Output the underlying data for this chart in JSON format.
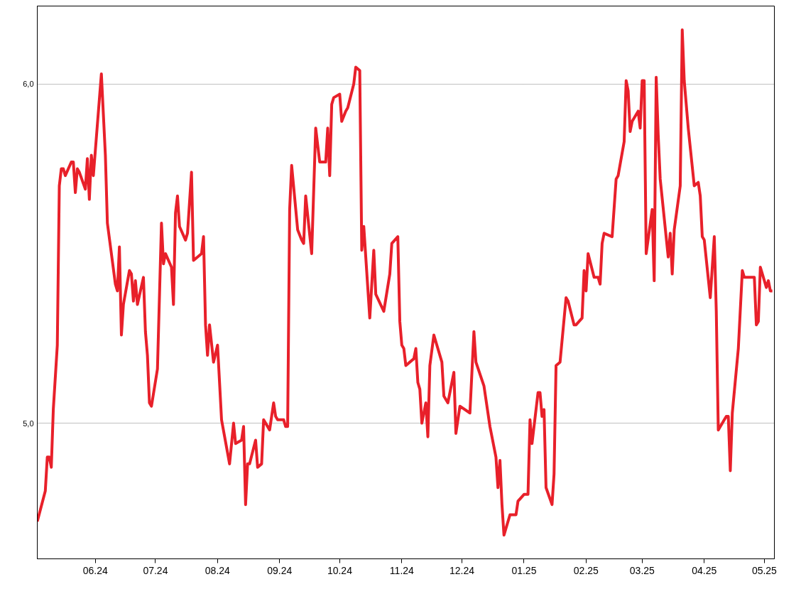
{
  "chart_data": {
    "type": "line",
    "x": [
      "2024-05-03",
      "2024-05-07",
      "2024-05-08",
      "2024-05-09",
      "2024-05-10",
      "2024-05-11",
      "2024-05-13",
      "2024-05-14",
      "2024-05-15",
      "2024-05-16",
      "2024-05-17",
      "2024-05-20",
      "2024-05-21",
      "2024-05-22",
      "2024-05-23",
      "2024-05-24",
      "2024-05-27",
      "2024-05-28",
      "2024-05-29",
      "2024-05-30",
      "2024-05-31",
      "2024-06-04",
      "2024-06-05",
      "2024-06-06",
      "2024-06-07",
      "2024-06-11",
      "2024-06-12",
      "2024-06-13",
      "2024-06-14",
      "2024-06-15",
      "2024-06-18",
      "2024-06-19",
      "2024-06-20",
      "2024-06-21",
      "2024-06-22",
      "2024-06-25",
      "2024-06-26",
      "2024-06-27",
      "2024-06-28",
      "2024-06-29",
      "2024-07-02",
      "2024-07-04",
      "2024-07-05",
      "2024-07-06",
      "2024-07-09",
      "2024-07-10",
      "2024-07-11",
      "2024-07-12",
      "2024-07-13",
      "2024-07-16",
      "2024-07-17",
      "2024-07-19",
      "2024-07-20",
      "2024-07-24",
      "2024-07-25",
      "2024-07-26",
      "2024-07-27",
      "2024-07-28",
      "2024-07-30",
      "2024-08-01",
      "2024-08-03",
      "2024-08-07",
      "2024-08-09",
      "2024-08-10",
      "2024-08-13",
      "2024-08-14",
      "2024-08-15",
      "2024-08-16",
      "2024-08-17",
      "2024-08-20",
      "2024-08-21",
      "2024-08-23",
      "2024-08-24",
      "2024-08-27",
      "2024-08-29",
      "2024-08-30",
      "2024-08-31",
      "2024-09-03",
      "2024-09-04",
      "2024-09-05",
      "2024-09-06",
      "2024-09-07",
      "2024-09-10",
      "2024-09-12",
      "2024-09-13",
      "2024-09-14",
      "2024-09-17",
      "2024-09-19",
      "2024-09-21",
      "2024-09-24",
      "2024-09-25",
      "2024-09-26",
      "2024-09-27",
      "2024-09-28",
      "2024-10-01",
      "2024-10-02",
      "2024-10-04",
      "2024-10-05",
      "2024-10-08",
      "2024-10-09",
      "2024-10-11",
      "2024-10-12",
      "2024-10-13",
      "2024-10-16",
      "2024-10-18",
      "2024-10-19",
      "2024-10-23",
      "2024-10-26",
      "2024-10-27",
      "2024-10-30",
      "2024-10-31",
      "2024-11-01",
      "2024-11-02",
      "2024-11-03",
      "2024-11-07",
      "2024-11-08",
      "2024-11-09",
      "2024-11-10",
      "2024-11-11",
      "2024-11-13",
      "2024-11-14",
      "2024-11-15",
      "2024-11-17",
      "2024-11-21",
      "2024-11-22",
      "2024-11-24",
      "2024-11-27",
      "2024-11-28",
      "2024-11-30",
      "2024-12-05",
      "2024-12-07",
      "2024-12-08",
      "2024-12-12",
      "2024-12-15",
      "2024-12-18",
      "2024-12-19",
      "2024-12-20",
      "2024-12-21",
      "2024-12-22",
      "2024-12-25",
      "2024-12-28",
      "2024-12-29",
      "2025-01-01",
      "2025-01-03",
      "2025-01-04",
      "2025-01-05",
      "2025-01-08",
      "2025-01-09",
      "2025-01-10",
      "2025-01-11",
      "2025-01-12",
      "2025-01-15",
      "2025-01-16",
      "2025-01-17",
      "2025-01-19",
      "2025-01-22",
      "2025-01-23",
      "2025-01-26",
      "2025-01-27",
      "2025-01-30",
      "2025-01-31",
      "2025-02-01",
      "2025-02-02",
      "2025-02-05",
      "2025-02-07",
      "2025-02-08",
      "2025-02-09",
      "2025-02-10",
      "2025-02-14",
      "2025-02-16",
      "2025-02-17",
      "2025-02-20",
      "2025-02-21",
      "2025-02-22",
      "2025-02-23",
      "2025-02-24",
      "2025-02-27",
      "2025-02-28",
      "2025-03-01",
      "2025-03-02",
      "2025-03-03",
      "2025-03-06",
      "2025-03-07",
      "2025-03-08",
      "2025-03-09",
      "2025-03-10",
      "2025-03-14",
      "2025-03-15",
      "2025-03-16",
      "2025-03-17",
      "2025-03-20",
      "2025-03-21",
      "2025-03-22",
      "2025-03-24",
      "2025-03-27",
      "2025-03-29",
      "2025-03-30",
      "2025-03-31",
      "2025-04-01",
      "2025-04-04",
      "2025-04-06",
      "2025-04-07",
      "2025-04-08",
      "2025-04-12",
      "2025-04-13",
      "2025-04-14",
      "2025-04-15",
      "2025-04-18",
      "2025-04-20",
      "2025-04-21",
      "2025-04-26",
      "2025-04-27",
      "2025-04-28",
      "2025-04-29",
      "2025-05-02",
      "2025-05-03",
      "2025-05-04",
      "2025-05-05"
    ],
    "series": [
      {
        "color": "#e8202a",
        "values": [
          4.71,
          4.8,
          4.9,
          4.9,
          4.87,
          5.04,
          5.23,
          5.7,
          5.75,
          5.75,
          5.73,
          5.77,
          5.77,
          5.68,
          5.75,
          5.74,
          5.69,
          5.78,
          5.66,
          5.79,
          5.73,
          6.03,
          5.91,
          5.79,
          5.59,
          5.41,
          5.39,
          5.52,
          5.26,
          5.35,
          5.45,
          5.44,
          5.36,
          5.42,
          5.35,
          5.43,
          5.27,
          5.2,
          5.06,
          5.05,
          5.16,
          5.59,
          5.47,
          5.5,
          5.46,
          5.35,
          5.62,
          5.67,
          5.58,
          5.54,
          5.56,
          5.74,
          5.48,
          5.5,
          5.55,
          5.29,
          5.2,
          5.29,
          5.18,
          5.23,
          5.01,
          4.88,
          5.0,
          4.94,
          4.95,
          4.99,
          4.76,
          4.88,
          4.88,
          4.95,
          4.87,
          4.88,
          5.01,
          4.98,
          5.06,
          5.02,
          5.01,
          5.01,
          4.99,
          4.99,
          5.63,
          5.76,
          5.57,
          5.54,
          5.53,
          5.67,
          5.5,
          5.87,
          5.77,
          5.77,
          5.87,
          5.73,
          5.94,
          5.96,
          5.97,
          5.89,
          5.92,
          5.93,
          6.0,
          6.05,
          6.04,
          5.51,
          5.58,
          5.31,
          5.51,
          5.38,
          5.33,
          5.44,
          5.53,
          5.55,
          5.3,
          5.23,
          5.22,
          5.17,
          5.19,
          5.22,
          5.12,
          5.1,
          5.0,
          5.06,
          4.96,
          5.17,
          5.26,
          5.18,
          5.08,
          5.06,
          5.15,
          4.97,
          5.05,
          5.03,
          5.27,
          5.18,
          5.11,
          4.99,
          4.9,
          4.81,
          4.89,
          4.76,
          4.67,
          4.73,
          4.73,
          4.77,
          4.79,
          4.79,
          5.01,
          4.94,
          5.09,
          5.09,
          5.02,
          5.04,
          4.81,
          4.76,
          4.85,
          5.17,
          5.18,
          5.37,
          5.36,
          5.29,
          5.29,
          5.31,
          5.45,
          5.39,
          5.5,
          5.43,
          5.43,
          5.41,
          5.53,
          5.56,
          5.55,
          5.72,
          5.73,
          5.83,
          6.01,
          5.98,
          5.86,
          5.89,
          5.92,
          5.87,
          6.01,
          6.01,
          5.5,
          5.63,
          5.42,
          6.02,
          5.85,
          5.72,
          5.49,
          5.56,
          5.44,
          5.57,
          5.7,
          6.16,
          6.01,
          5.87,
          5.7,
          5.71,
          5.67,
          5.55,
          5.54,
          5.37,
          5.55,
          5.33,
          4.98,
          5.02,
          5.02,
          4.86,
          5.03,
          5.22,
          5.45,
          5.43,
          5.43,
          5.29,
          5.3,
          5.46,
          5.4,
          5.42,
          5.39,
          5.39
        ]
      }
    ],
    "xlim": [
      "2024-05-03",
      "2025-05-06"
    ],
    "xticks": [
      {
        "value": "2024-06-01",
        "label": "06.24"
      },
      {
        "value": "2024-07-01",
        "label": "07.24"
      },
      {
        "value": "2024-08-01",
        "label": "08.24"
      },
      {
        "value": "2024-09-01",
        "label": "09.24"
      },
      {
        "value": "2024-10-01",
        "label": "10.24"
      },
      {
        "value": "2024-11-01",
        "label": "11.24"
      },
      {
        "value": "2024-12-01",
        "label": "12.24"
      },
      {
        "value": "2025-01-01",
        "label": "01.25"
      },
      {
        "value": "2025-02-01",
        "label": "02.25"
      },
      {
        "value": "2025-03-01",
        "label": "03.25"
      },
      {
        "value": "2025-04-01",
        "label": "04.25"
      },
      {
        "value": "2025-05-01",
        "label": "05.25"
      }
    ],
    "ylim": [
      4.6,
      6.23
    ],
    "yticks": [
      {
        "value": 5,
        "label": "5,0"
      },
      {
        "value": 6,
        "label": "6,0"
      }
    ],
    "grid": "y",
    "marker": "none",
    "line_style": "solid"
  }
}
